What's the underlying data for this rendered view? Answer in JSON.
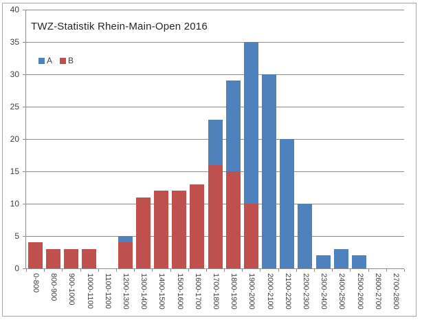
{
  "title": "TWZ-Statistik Rhein-Main-Open 2016",
  "chart_data": {
    "type": "bar",
    "style": "overlapping-bars",
    "title": "TWZ-Statistik Rhein-Main-Open 2016",
    "categories": [
      "0-800",
      "800-900",
      "900-1000",
      "1000-1100",
      "1100-1200",
      "1200-1300",
      "1300-1400",
      "1400-1500",
      "1500-1600",
      "1600-1700",
      "1700-1800",
      "1800-1900",
      "1900-2000",
      "2000-2100",
      "2100-2200",
      "2200-2300",
      "2300-2400",
      "2400-2500",
      "2500-2600",
      "2600-2700",
      "2700-2800"
    ],
    "series": [
      {
        "name": "A",
        "color": "#4F81BD",
        "values": [
          0,
          0,
          0,
          0,
          0,
          5,
          0,
          0,
          0,
          0,
          23,
          29,
          35,
          30,
          20,
          10,
          2,
          3,
          2,
          0,
          0
        ]
      },
      {
        "name": "B",
        "color": "#C0504D",
        "values": [
          4,
          3,
          3,
          3,
          0,
          4,
          11,
          12,
          12,
          13,
          16,
          15,
          10,
          0,
          0,
          0,
          0,
          0,
          0,
          0,
          0
        ]
      }
    ],
    "xlabel": "",
    "ylabel": "",
    "ylim": [
      0,
      40
    ],
    "ytick_step": 5,
    "yticks": [
      0,
      5,
      10,
      15,
      20,
      25,
      30,
      35,
      40
    ],
    "grid": true,
    "gridline_color": "#8c8c8c",
    "legend_position": "top-left-inside"
  }
}
